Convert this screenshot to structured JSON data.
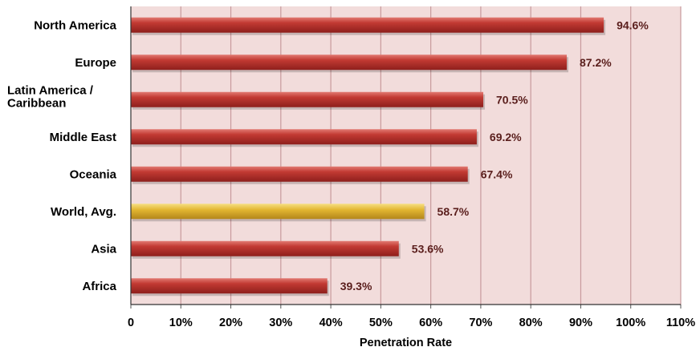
{
  "chart_data": {
    "type": "bar",
    "orientation": "horizontal",
    "categories": [
      [
        "North America"
      ],
      [
        "Europe"
      ],
      [
        "Latin America /",
        "Caribbean"
      ],
      [
        "Middle East"
      ],
      [
        "Oceania"
      ],
      [
        "World, Avg."
      ],
      [
        "Asia"
      ],
      [
        "Africa"
      ]
    ],
    "values": [
      94.6,
      87.2,
      70.5,
      69.2,
      67.4,
      58.7,
      53.6,
      39.3
    ],
    "value_labels": [
      "94.6%",
      "87.2%",
      "70.5%",
      "69.2%",
      "67.4%",
      "58.7%",
      "53.6%",
      "39.3%"
    ],
    "highlight_index": 5,
    "title": "",
    "xlabel": "Penetration Rate",
    "ylabel": "",
    "xlim": [
      0,
      110
    ],
    "xticks": [
      0,
      10,
      20,
      30,
      40,
      50,
      60,
      70,
      80,
      90,
      100,
      110
    ],
    "xtick_labels": [
      "0",
      "10%",
      "20%",
      "30%",
      "40%",
      "50%",
      "60%",
      "70%",
      "80%",
      "90%",
      "100%",
      "110%"
    ],
    "grid": true,
    "legend": "none",
    "colors": {
      "bar": "#b5302b",
      "bar_highlight": "#e0b42a",
      "plot_background": "#f2dcdb",
      "gridline": "#c89a9c",
      "value_label": "#5a1e1c"
    }
  }
}
